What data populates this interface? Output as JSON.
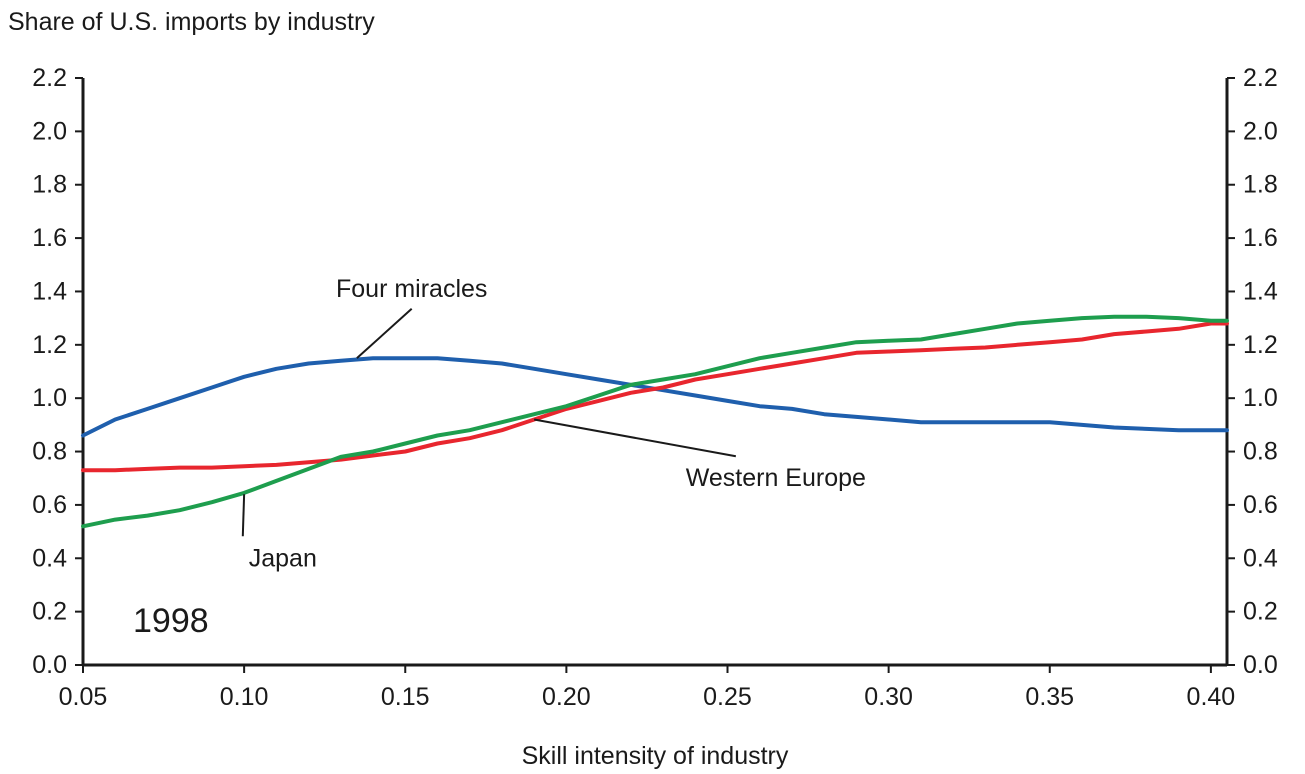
{
  "chart_data": {
    "type": "line",
    "title": "",
    "ylabel": "Share of U.S. imports by industry",
    "xlabel": "Skill intensity of industry",
    "xlim": [
      0.05,
      0.405
    ],
    "ylim": [
      0.0,
      2.2
    ],
    "x_ticks": [
      "0.05",
      "0.10",
      "0.15",
      "0.20",
      "0.25",
      "0.30",
      "0.35",
      "0.40"
    ],
    "y_ticks": [
      "0.0",
      "0.2",
      "0.4",
      "0.6",
      "0.8",
      "1.0",
      "1.2",
      "1.4",
      "1.6",
      "1.8",
      "2.0",
      "2.2"
    ],
    "grid": false,
    "right_axis_mirrored": true,
    "year_label": "1998",
    "series": [
      {
        "name": "Four miracles",
        "color": "#1f5fad",
        "x": [
          0.05,
          0.06,
          0.07,
          0.08,
          0.09,
          0.1,
          0.11,
          0.12,
          0.13,
          0.14,
          0.15,
          0.16,
          0.17,
          0.18,
          0.19,
          0.2,
          0.21,
          0.22,
          0.23,
          0.24,
          0.25,
          0.26,
          0.27,
          0.28,
          0.29,
          0.3,
          0.31,
          0.32,
          0.33,
          0.34,
          0.35,
          0.36,
          0.37,
          0.38,
          0.39,
          0.4,
          0.405
        ],
        "values": [
          0.86,
          0.92,
          0.96,
          1.0,
          1.04,
          1.08,
          1.11,
          1.13,
          1.14,
          1.15,
          1.15,
          1.15,
          1.14,
          1.13,
          1.11,
          1.09,
          1.07,
          1.05,
          1.03,
          1.01,
          0.99,
          0.97,
          0.96,
          0.94,
          0.93,
          0.92,
          0.91,
          0.91,
          0.91,
          0.91,
          0.91,
          0.9,
          0.89,
          0.885,
          0.88,
          0.88,
          0.88
        ]
      },
      {
        "name": "Western Europe",
        "color": "#e8262e",
        "x": [
          0.05,
          0.06,
          0.07,
          0.08,
          0.09,
          0.1,
          0.11,
          0.12,
          0.13,
          0.14,
          0.15,
          0.16,
          0.17,
          0.18,
          0.19,
          0.2,
          0.21,
          0.22,
          0.23,
          0.24,
          0.25,
          0.26,
          0.27,
          0.28,
          0.29,
          0.3,
          0.31,
          0.32,
          0.33,
          0.34,
          0.35,
          0.36,
          0.37,
          0.38,
          0.39,
          0.4,
          0.405
        ],
        "values": [
          0.73,
          0.73,
          0.735,
          0.74,
          0.74,
          0.745,
          0.75,
          0.76,
          0.77,
          0.785,
          0.8,
          0.83,
          0.85,
          0.88,
          0.92,
          0.96,
          0.99,
          1.02,
          1.04,
          1.07,
          1.09,
          1.11,
          1.13,
          1.15,
          1.17,
          1.175,
          1.18,
          1.185,
          1.19,
          1.2,
          1.21,
          1.22,
          1.24,
          1.25,
          1.26,
          1.28,
          1.28
        ]
      },
      {
        "name": "Japan",
        "color": "#1e9e4e",
        "x": [
          0.05,
          0.06,
          0.07,
          0.08,
          0.09,
          0.1,
          0.11,
          0.12,
          0.13,
          0.14,
          0.15,
          0.16,
          0.17,
          0.18,
          0.19,
          0.2,
          0.21,
          0.22,
          0.23,
          0.24,
          0.25,
          0.26,
          0.27,
          0.28,
          0.29,
          0.3,
          0.31,
          0.32,
          0.33,
          0.34,
          0.35,
          0.36,
          0.37,
          0.38,
          0.39,
          0.4,
          0.405
        ],
        "values": [
          0.52,
          0.545,
          0.56,
          0.58,
          0.61,
          0.645,
          0.69,
          0.735,
          0.78,
          0.8,
          0.83,
          0.86,
          0.88,
          0.91,
          0.94,
          0.97,
          1.01,
          1.05,
          1.07,
          1.09,
          1.12,
          1.15,
          1.17,
          1.19,
          1.21,
          1.215,
          1.22,
          1.24,
          1.26,
          1.28,
          1.29,
          1.3,
          1.305,
          1.305,
          1.3,
          1.29,
          1.29
        ]
      }
    ],
    "annotations": [
      {
        "text": "Four miracles",
        "series": "Four miracles",
        "at": [
          0.135,
          1.15
        ],
        "label_at": [
          0.152,
          1.38
        ]
      },
      {
        "text": "Western Europe",
        "series": "Western Europe",
        "at": [
          0.19,
          0.92
        ],
        "label_at": [
          0.265,
          0.67
        ]
      },
      {
        "text": "Japan",
        "series": "Japan",
        "at": [
          0.1,
          0.64
        ],
        "label_at": [
          0.112,
          0.37
        ]
      }
    ]
  }
}
